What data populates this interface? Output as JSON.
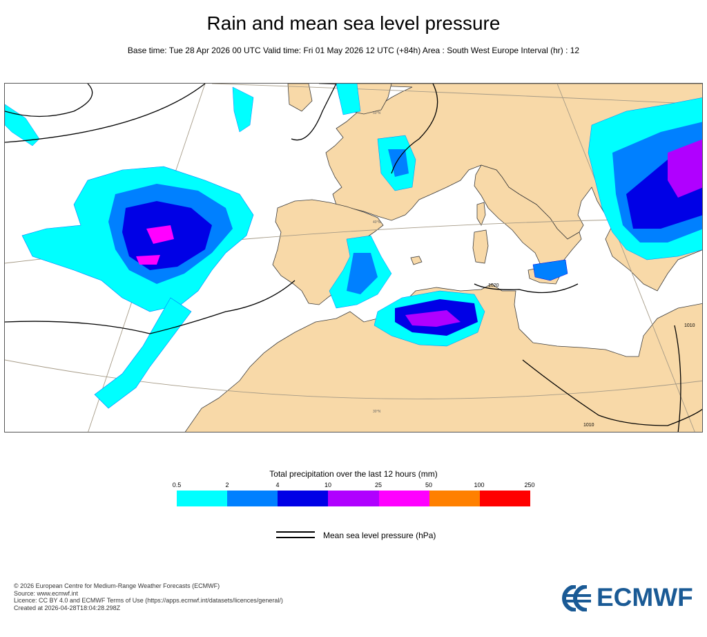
{
  "header": {
    "title": "Rain and mean sea level pressure",
    "subtitle": "Base time: Tue 28 Apr 2026 00 UTC Valid time: Fri 01 May 2026 12 UTC (+84h) Area : South West Europe Interval (hr) : 12"
  },
  "map": {
    "isobar_labels": [
      "1020",
      "1010",
      "1010"
    ],
    "latitude_labels": [
      "50°N",
      "40°N",
      "30°N"
    ],
    "colors": {
      "land": "#f8d9a8",
      "sea": "#ffffff",
      "coast": "#3a3a3a",
      "graticule": "#a59a86",
      "isobar": "#000000"
    }
  },
  "legend": {
    "title": "Total precipitation over the last 12 hours (mm)",
    "ticks": [
      "0.5",
      "2",
      "4",
      "10",
      "25",
      "50",
      "100",
      "250"
    ],
    "colors": [
      "#00ffff",
      "#0080ff",
      "#0000e6",
      "#b000ff",
      "#ff00ff",
      "#ff8000",
      "#ff0000"
    ],
    "mslp_label": "Mean sea level pressure (hPa)"
  },
  "footer": {
    "lines": [
      "© 2026 European Centre for Medium-Range Weather Forecasts (ECMWF)",
      "Source: www.ecmwf.int",
      "Licence: CC BY 4.0 and ECMWF Terms of Use (https://apps.ecmwf.int/datasets/licences/general/)",
      "Created at 2026-04-28T18:04:28.298Z"
    ],
    "logo_text": "ECMWF"
  }
}
